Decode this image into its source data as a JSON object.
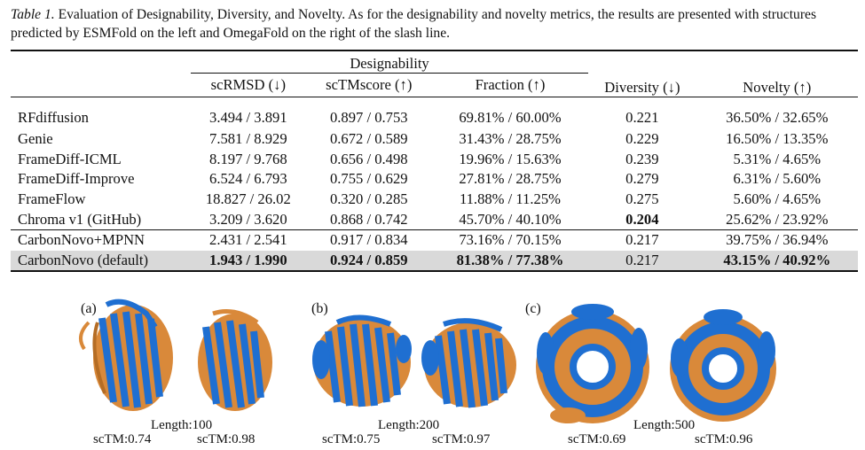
{
  "caption": {
    "label": "Table 1.",
    "text": "Evaluation of Designability, Diversity, and Novelty. As for the designability and novelty metrics, the results are presented with structures predicted by ESMFold on the left and OmegaFold on the right of the slash line."
  },
  "table": {
    "group_header": "Designability",
    "headers": [
      "scRMSD (↓)",
      "scTMscore (↑)",
      "Fraction (↑)",
      "Diversity (↓)",
      "Novelty (↑)"
    ],
    "rows": [
      {
        "method": "RFdiffusion",
        "scrmsd": "3.494 / 3.891",
        "sctm": "0.897 / 0.753",
        "fraction": "69.81% / 60.00%",
        "diversity": "0.221",
        "novelty": "36.50% / 32.65%"
      },
      {
        "method": "Genie",
        "scrmsd": "7.581 / 8.929",
        "sctm": "0.672 / 0.589",
        "fraction": "31.43% / 28.75%",
        "diversity": "0.229",
        "novelty": "16.50% / 13.35%"
      },
      {
        "method": "FrameDiff-ICML",
        "scrmsd": "8.197 / 9.768",
        "sctm": "0.656 / 0.498",
        "fraction": "19.96% / 15.63%",
        "diversity": "0.239",
        "novelty": "5.31% / 4.65%"
      },
      {
        "method": "FrameDiff-Improve",
        "scrmsd": "6.524 / 6.793",
        "sctm": "0.755 / 0.629",
        "fraction": "27.81% / 28.75%",
        "diversity": "0.279",
        "novelty": "6.31% / 5.60%"
      },
      {
        "method": "FrameFlow",
        "scrmsd": "18.827 / 26.02",
        "sctm": "0.320 / 0.285",
        "fraction": "11.88% / 11.25%",
        "diversity": "0.275",
        "novelty": "5.60% / 4.65%"
      },
      {
        "method": "Chroma v1 (GitHub)",
        "scrmsd": "3.209 / 3.620",
        "sctm": "0.868 / 0.742",
        "fraction": "45.70% / 40.10%",
        "diversity": "0.204",
        "novelty": "25.62% / 23.92%"
      },
      {
        "method": "CarbonNovo+MPNN",
        "scrmsd": "2.431 / 2.541",
        "sctm": "0.917 / 0.834",
        "fraction": "73.16% / 70.15%",
        "diversity": "0.217",
        "novelty": "39.75% / 36.94%"
      },
      {
        "method": "CarbonNovo (default)",
        "scrmsd": "1.943 / 1.990",
        "sctm": "0.924 / 0.859",
        "fraction": "81.38% / 77.38%",
        "diversity": "0.217",
        "novelty": "43.15% / 40.92%"
      }
    ]
  },
  "figure": {
    "panels": [
      {
        "label": "(a)",
        "length": "Length:100",
        "left_sctm": "scTM:0.74",
        "right_sctm": "scTM:0.98"
      },
      {
        "label": "(b)",
        "length": "Length:200",
        "left_sctm": "scTM:0.75",
        "right_sctm": "scTM:0.97"
      },
      {
        "label": "(c)",
        "length": "Length:500",
        "left_sctm": "scTM:0.69",
        "right_sctm": "scTM:0.96"
      }
    ],
    "colors": {
      "blue": "#1f6fd1",
      "orange": "#d9893a",
      "dark_blue": "#163e7a"
    }
  }
}
